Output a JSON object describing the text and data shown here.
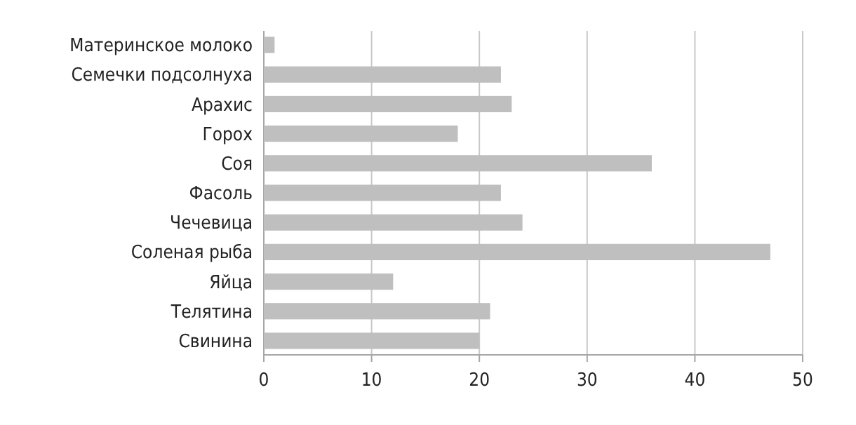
{
  "chart_data": {
    "type": "bar",
    "orientation": "horizontal",
    "categories": [
      "Материнское молоко",
      "Семечки подсолнуха",
      "Арахис",
      "Горох",
      "Соя",
      "Фасоль",
      "Чечевица",
      "Соленая рыба",
      "Яйца",
      "Телятина",
      "Свинина"
    ],
    "values": [
      1,
      22,
      23,
      18,
      36,
      22,
      24,
      47,
      12,
      21,
      20
    ],
    "color": "#bfbfbf",
    "xlim": [
      0,
      50
    ],
    "xticks": [
      0,
      10,
      20,
      30,
      40,
      50
    ],
    "grid": "x"
  }
}
